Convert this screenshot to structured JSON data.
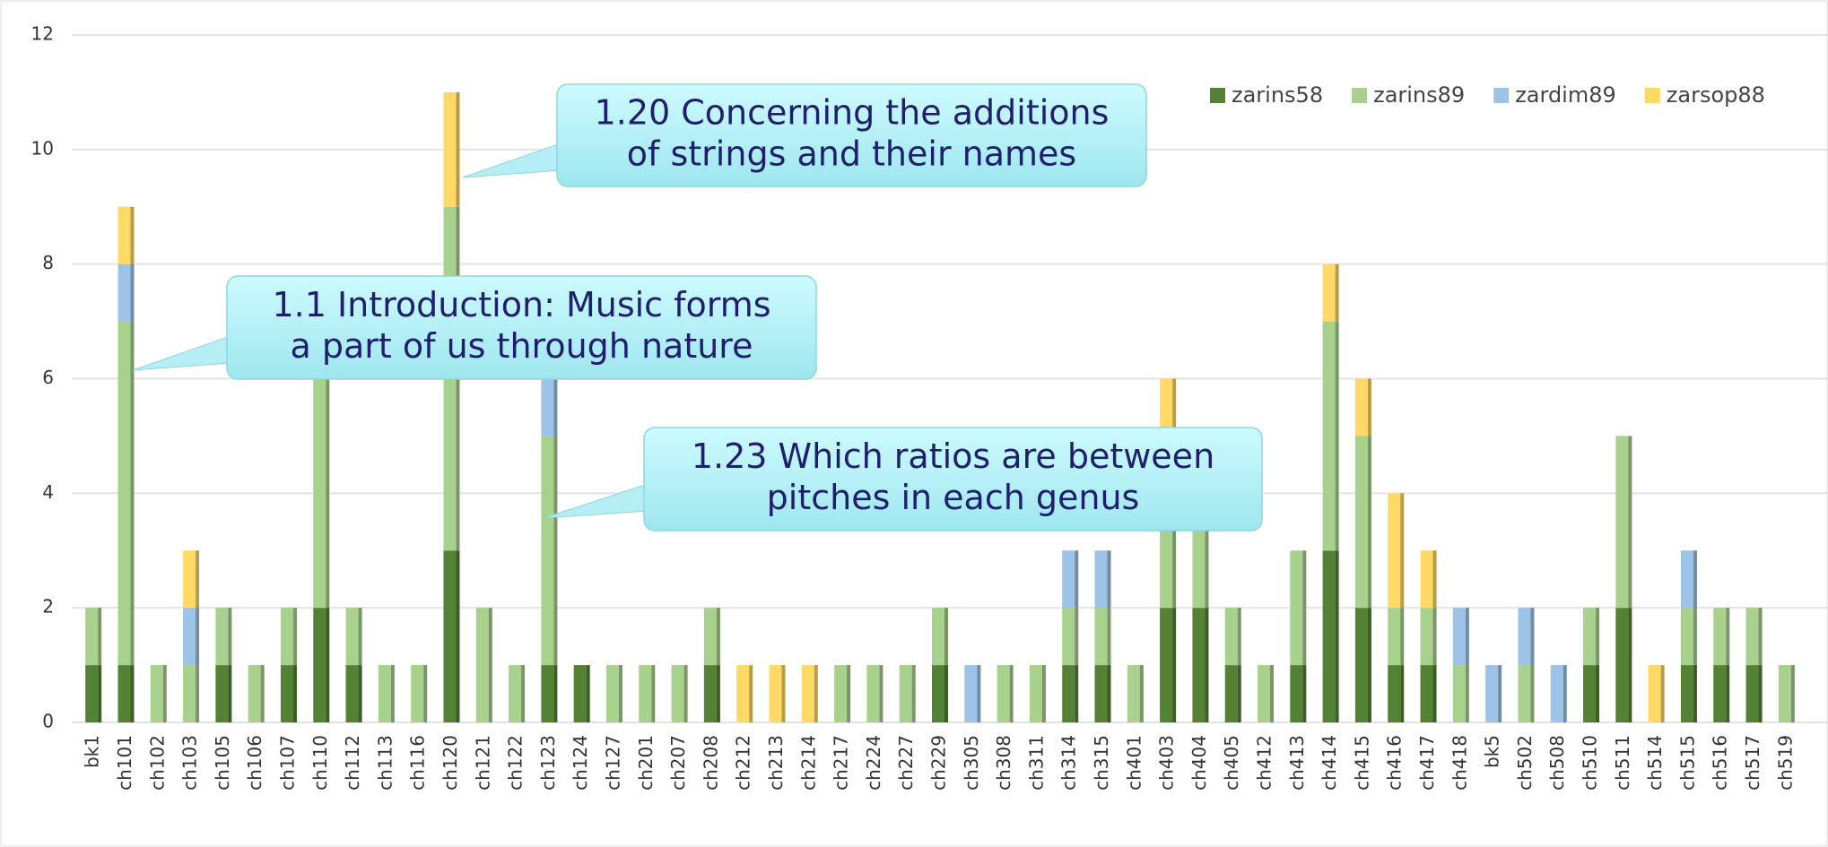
{
  "chart_data": {
    "type": "stacked_bar",
    "categories": [
      "bk1",
      "ch101",
      "ch102",
      "ch103",
      "ch105",
      "ch106",
      "ch107",
      "ch110",
      "ch112",
      "ch113",
      "ch116",
      "ch120",
      "ch121",
      "ch122",
      "ch123",
      "ch124",
      "ch127",
      "ch201",
      "ch207",
      "ch208",
      "ch212",
      "ch213",
      "ch214",
      "ch217",
      "ch224",
      "ch227",
      "ch229",
      "ch305",
      "ch308",
      "ch311",
      "ch314",
      "ch315",
      "ch401",
      "ch403",
      "ch404",
      "ch405",
      "ch412",
      "ch413",
      "ch414",
      "ch415",
      "ch416",
      "ch417",
      "ch418",
      "bk5",
      "ch502",
      "ch508",
      "ch510",
      "ch511",
      "ch514",
      "ch515",
      "ch516",
      "ch517",
      "ch519"
    ],
    "series": [
      {
        "name": "zarins58",
        "color": "#548235",
        "values": [
          1,
          1,
          0,
          0,
          1,
          0,
          1,
          2,
          1,
          0,
          0,
          3,
          0,
          0,
          1,
          1,
          0,
          0,
          0,
          1,
          0,
          0,
          0,
          0,
          0,
          0,
          1,
          0,
          0,
          0,
          1,
          1,
          0,
          2,
          2,
          1,
          0,
          1,
          3,
          2,
          1,
          1,
          0,
          0,
          0,
          0,
          1,
          2,
          0,
          1,
          1,
          1,
          0
        ]
      },
      {
        "name": "zarins89",
        "color": "#a9d18e",
        "values": [
          1,
          6,
          1,
          1,
          1,
          1,
          1,
          5,
          1,
          1,
          1,
          6,
          2,
          1,
          4,
          0,
          1,
          1,
          1,
          1,
          0,
          0,
          0,
          1,
          1,
          1,
          1,
          0,
          1,
          1,
          1,
          1,
          1,
          3,
          2,
          1,
          1,
          2,
          4,
          3,
          1,
          1,
          1,
          0,
          1,
          0,
          1,
          3,
          0,
          1,
          1,
          1,
          1
        ]
      },
      {
        "name": "zardim89",
        "color": "#9dc3e6",
        "values": [
          0,
          1,
          0,
          1,
          0,
          0,
          0,
          0,
          0,
          0,
          0,
          0,
          0,
          0,
          1,
          0,
          0,
          0,
          0,
          0,
          0,
          0,
          0,
          0,
          0,
          0,
          0,
          1,
          0,
          0,
          1,
          1,
          0,
          0,
          0,
          0,
          0,
          0,
          0,
          0,
          0,
          0,
          1,
          1,
          1,
          1,
          0,
          0,
          0,
          1,
          0,
          0,
          0
        ]
      },
      {
        "name": "zarsop88",
        "color": "#ffd966",
        "values": [
          0,
          1,
          0,
          1,
          0,
          0,
          0,
          0,
          0,
          0,
          0,
          2,
          0,
          0,
          0,
          0,
          0,
          0,
          0,
          0,
          1,
          1,
          1,
          0,
          0,
          0,
          0,
          0,
          0,
          0,
          0,
          0,
          0,
          1,
          0,
          0,
          0,
          0,
          1,
          1,
          2,
          1,
          0,
          0,
          0,
          0,
          0,
          0,
          1,
          0,
          0,
          0,
          0
        ]
      }
    ],
    "ylim": [
      0,
      12
    ],
    "yticks": [
      0,
      2,
      4,
      6,
      8,
      10,
      12
    ],
    "grid": true,
    "legend": "top-right",
    "annotations": [
      [
        "1.20 Concerning the additions",
        "of strings and their names"
      ],
      [
        "1.1 Introduction: Music forms",
        "a part of us through nature"
      ],
      [
        "1.23 Which ratios are between",
        "pitches in each genus"
      ]
    ]
  }
}
